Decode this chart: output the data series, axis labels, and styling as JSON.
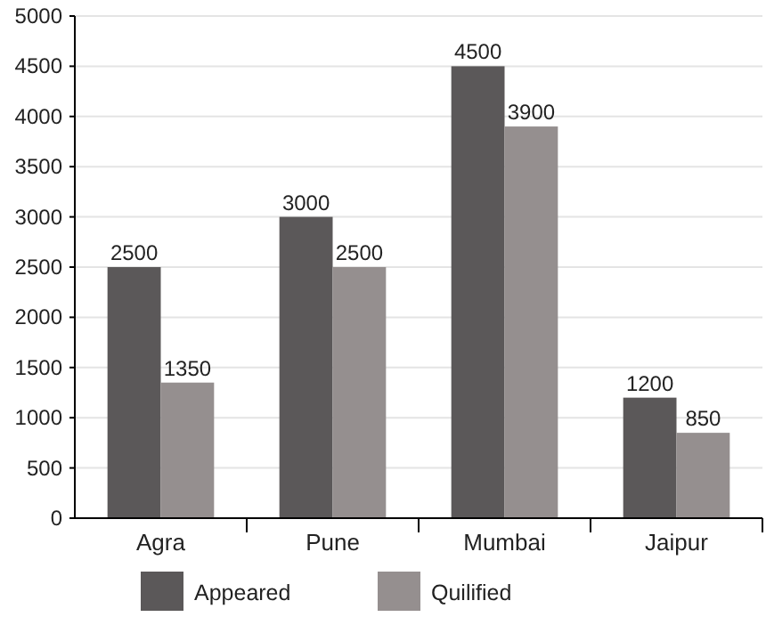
{
  "chart_data": {
    "type": "bar",
    "categories": [
      "Agra",
      "Pune",
      "Mumbai",
      "Jaipur"
    ],
    "series": [
      {
        "name": "Appeared",
        "color": "#5b5859",
        "values": [
          2500,
          3000,
          4500,
          1200
        ]
      },
      {
        "name": "Quilified",
        "color": "#958f8f",
        "values": [
          1350,
          2500,
          3900,
          850
        ]
      }
    ],
    "ylim": [
      0,
      5000
    ],
    "yticks": [
      0,
      500,
      1000,
      1500,
      2000,
      2500,
      3000,
      3500,
      4000,
      4500,
      5000
    ],
    "grid": "y",
    "legend": "bottom",
    "data_labels": true
  }
}
